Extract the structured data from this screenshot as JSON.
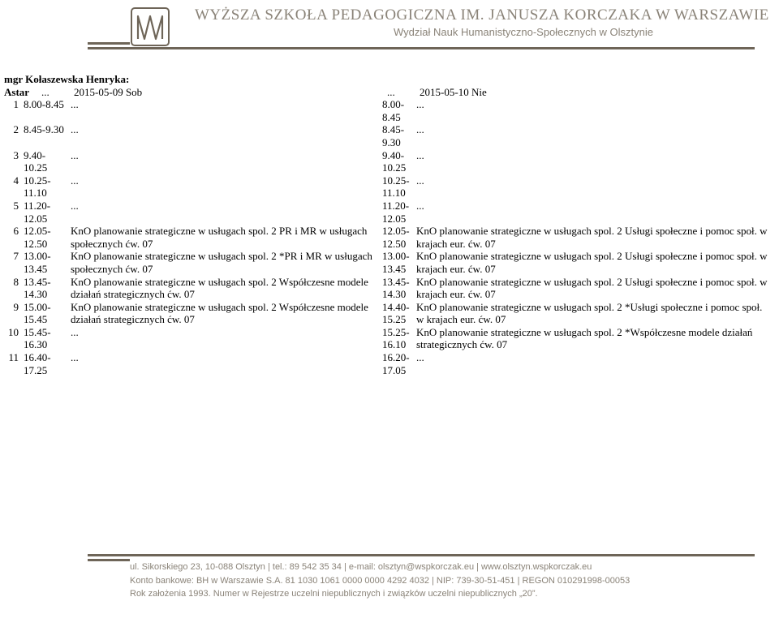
{
  "header": {
    "school": "WYŻSZA SZKOŁA PEDAGOGICZNA IM. JANUSZA KORCZAKA W WARSZAWIE",
    "faculty": "Wydział Nauk Humanistyczno-Społecznych w Olsztynie"
  },
  "teacher": "mgr Kołaszewska Henryka:",
  "titleRow": {
    "num": "Astar",
    "time1": "...",
    "desc1": "2015-05-09 Sob",
    "time2": "...",
    "desc2": "2015-05-10 Nie"
  },
  "rows": [
    {
      "n": "1",
      "t1a": "8.00-8.45",
      "t1b": "",
      "d1": "...",
      "t2a": "8.00-8.45",
      "t2b": "",
      "d2": "..."
    },
    {
      "n": "2",
      "t1a": "8.45-9.30",
      "t1b": "",
      "d1": "...",
      "t2a": "8.45-9.30",
      "t2b": "",
      "d2": "..."
    },
    {
      "n": "3",
      "t1a": "9.40-",
      "t1b": "10.25",
      "d1": "...",
      "t2a": "9.40-",
      "t2b": "10.25",
      "d2": "..."
    },
    {
      "n": "4",
      "t1a": "10.25-",
      "t1b": "11.10",
      "d1": "...",
      "t2a": "10.25-",
      "t2b": "11.10",
      "d2": "..."
    },
    {
      "n": "5",
      "t1a": "11.20-",
      "t1b": "12.05",
      "d1": "...",
      "t2a": "11.20-",
      "t2b": "12.05",
      "d2": "..."
    },
    {
      "n": "6",
      "t1a": "12.05-",
      "t1b": "12.50",
      "d1": "KnO planowanie strategiczne w usługach spol. 2 PR i MR w usługach społecznych ćw. 07",
      "t2a": "12.05-",
      "t2b": "12.50",
      "d2": "KnO planowanie strategiczne w usługach spol. 2 Usługi społeczne i pomoc społ. w krajach eur. ćw. 07"
    },
    {
      "n": "7",
      "t1a": "13.00-",
      "t1b": "13.45",
      "d1": "KnO planowanie strategiczne w usługach spol. 2 *PR i MR w usługach społecznych ćw. 07",
      "t2a": "13.00-",
      "t2b": "13.45",
      "d2": "KnO planowanie strategiczne w usługach spol. 2 Usługi społeczne i pomoc społ. w krajach eur. ćw. 07"
    },
    {
      "n": "8",
      "t1a": "13.45-",
      "t1b": "14.30",
      "d1": "KnO planowanie strategiczne w usługach spol. 2 Współczesne modele działań strategicznych ćw. 07",
      "t2a": "13.45-",
      "t2b": "14.30",
      "d2": "KnO planowanie strategiczne w usługach spol. 2 Usługi społeczne i pomoc społ. w krajach eur. ćw. 07"
    },
    {
      "n": "9",
      "t1a": "15.00-",
      "t1b": "15.45",
      "d1": "KnO planowanie strategiczne w usługach spol. 2 Współczesne modele działań strategicznych ćw. 07",
      "t2a": "14.40-",
      "t2b": "15.25",
      "d2": "KnO planowanie strategiczne w usługach spol. 2 *Usługi społeczne i pomoc społ. w krajach eur. ćw. 07"
    },
    {
      "n": "10",
      "t1a": "15.45-",
      "t1b": "16.30",
      "d1": "...",
      "t2a": "15.25-",
      "t2b": "16.10",
      "d2": "KnO planowanie strategiczne w usługach spol. 2 *Współczesne modele działań strategicznych ćw. 07"
    },
    {
      "n": "11",
      "t1a": "16.40-",
      "t1b": "17.25",
      "d1": "...",
      "t2a": "16.20-",
      "t2b": "17.05",
      "d2": "..."
    }
  ],
  "footer": {
    "l1": "ul. Sikorskiego 23, 10-088 Olsztyn | tel.: 89 542 35 34 | e-mail: olsztyn@wspkorczak.eu | www.olsztyn.wspkorczak.eu",
    "l2": "Konto bankowe: BH w Warszawie S.A. 81 1030 1061 0000 0000 4292 4032 | NIP: 739-30-51-451 | REGON 010291998-00053",
    "l3": "Rok założenia 1993. Numer w Rejestrze uczelni niepublicznych i związków uczelni niepublicznych „20”."
  },
  "colors": {
    "text": "#000000",
    "header_text": "#8a8378",
    "rule": "#6e6558",
    "logo_stroke": "#6e6558"
  }
}
